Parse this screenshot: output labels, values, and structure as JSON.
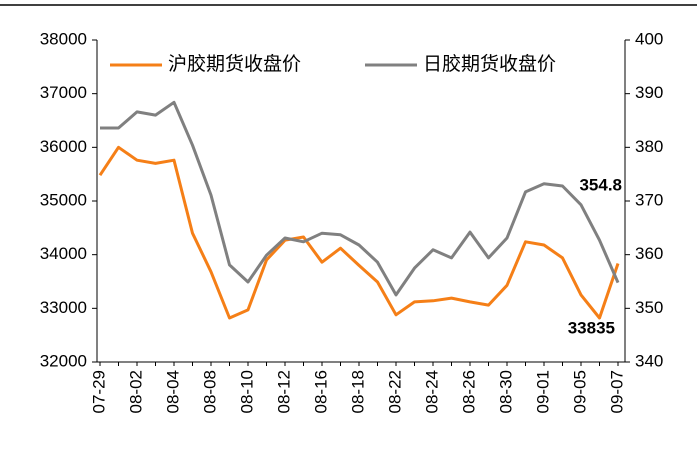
{
  "chart_data": {
    "type": "line",
    "categories": [
      "07-29",
      null,
      "08-02",
      null,
      "08-04",
      null,
      "08-08",
      null,
      "08-10",
      null,
      "08-12",
      null,
      "08-16",
      null,
      "08-18",
      null,
      "08-22",
      null,
      "08-24",
      null,
      "08-26",
      null,
      "08-30",
      null,
      "09-01",
      null,
      "09-05",
      null,
      "09-07"
    ],
    "series": [
      {
        "name": "沪胶期货收盘价",
        "color": "#f57f17",
        "axis": "y",
        "values": [
          35480,
          36000,
          35760,
          35700,
          35760,
          34400,
          33680,
          32820,
          32970,
          33900,
          34270,
          34330,
          33860,
          34120,
          33800,
          33490,
          32880,
          33120,
          33140,
          33190,
          33120,
          33060,
          33430,
          34240,
          34180,
          33940,
          33250,
          32820,
          33835
        ]
      },
      {
        "name": "日胶期货收盘价",
        "color": "#808080",
        "axis": "y2",
        "values": [
          383.6,
          383.6,
          386.6,
          386.0,
          388.4,
          380.4,
          371.1,
          358.1,
          354.9,
          359.9,
          363.1,
          362.4,
          364.0,
          363.7,
          361.8,
          358.6,
          352.5,
          357.5,
          360.9,
          359.4,
          364.2,
          359.4,
          363.1,
          371.7,
          373.2,
          372.8,
          369.3,
          362.7,
          354.8
        ]
      }
    ],
    "ylim": [
      32000,
      38000
    ],
    "yticks": [
      32000,
      33000,
      34000,
      35000,
      36000,
      37000,
      38000
    ],
    "y2lim": [
      340,
      400
    ],
    "y2ticks": [
      340,
      350,
      360,
      370,
      380,
      390,
      400
    ],
    "legend": "top-left"
  }
}
